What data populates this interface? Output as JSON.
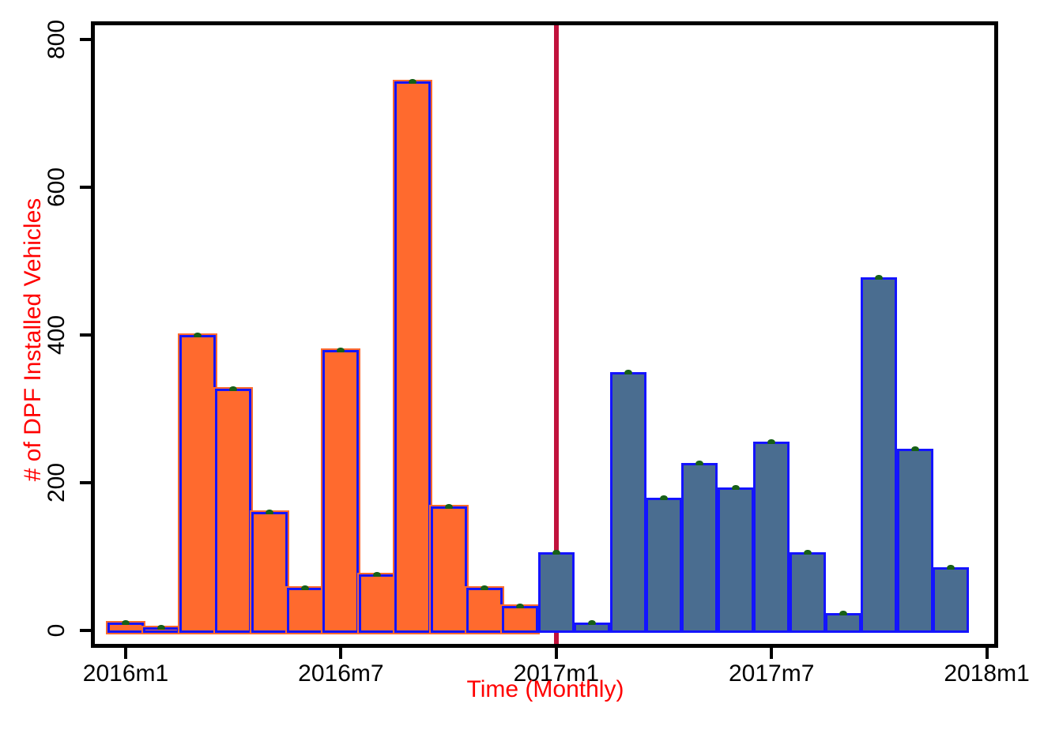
{
  "chart_data": {
    "type": "bar",
    "title": "",
    "xlabel": "Time (Monthly)",
    "ylabel": "# of DPF Installed Vehicles",
    "ylim": [
      0,
      800
    ],
    "yticks": [
      0,
      200,
      400,
      600,
      800
    ],
    "xticks": [
      {
        "label": "2016m1",
        "month_index": 0
      },
      {
        "label": "2016m7",
        "month_index": 6
      },
      {
        "label": "2017m1",
        "month_index": 12
      },
      {
        "label": "2017m7",
        "month_index": 18
      },
      {
        "label": "2018m1",
        "month_index": 24
      }
    ],
    "categories": [
      "2016m1",
      "2016m2",
      "2016m3",
      "2016m4",
      "2016m5",
      "2016m6",
      "2016m7",
      "2016m8",
      "2016m9",
      "2016m10",
      "2016m11",
      "2016m12",
      "2017m1",
      "2017m2",
      "2017m3",
      "2017m4",
      "2017m5",
      "2017m6",
      "2017m7",
      "2017m8",
      "2017m9",
      "2017m10",
      "2017m11",
      "2017m12"
    ],
    "values": [
      8,
      1,
      397,
      324,
      157,
      55,
      377,
      73,
      740,
      165,
      55,
      30,
      103,
      7,
      346,
      176,
      223,
      190,
      252,
      103,
      20,
      475,
      243,
      82
    ],
    "segments": {
      "pre_2017_color": "#FF6A2E",
      "post_2017_color": "#4A6D90",
      "split_month_index": 12
    },
    "vline": {
      "at": "2017m1",
      "color": "#C1123C"
    },
    "bar_outline_color": "#1414FF",
    "marker_color": "#176017",
    "axis_title_color": "#FF0000",
    "tick_label_color": "#000000",
    "grid": "off",
    "legend": "none"
  }
}
